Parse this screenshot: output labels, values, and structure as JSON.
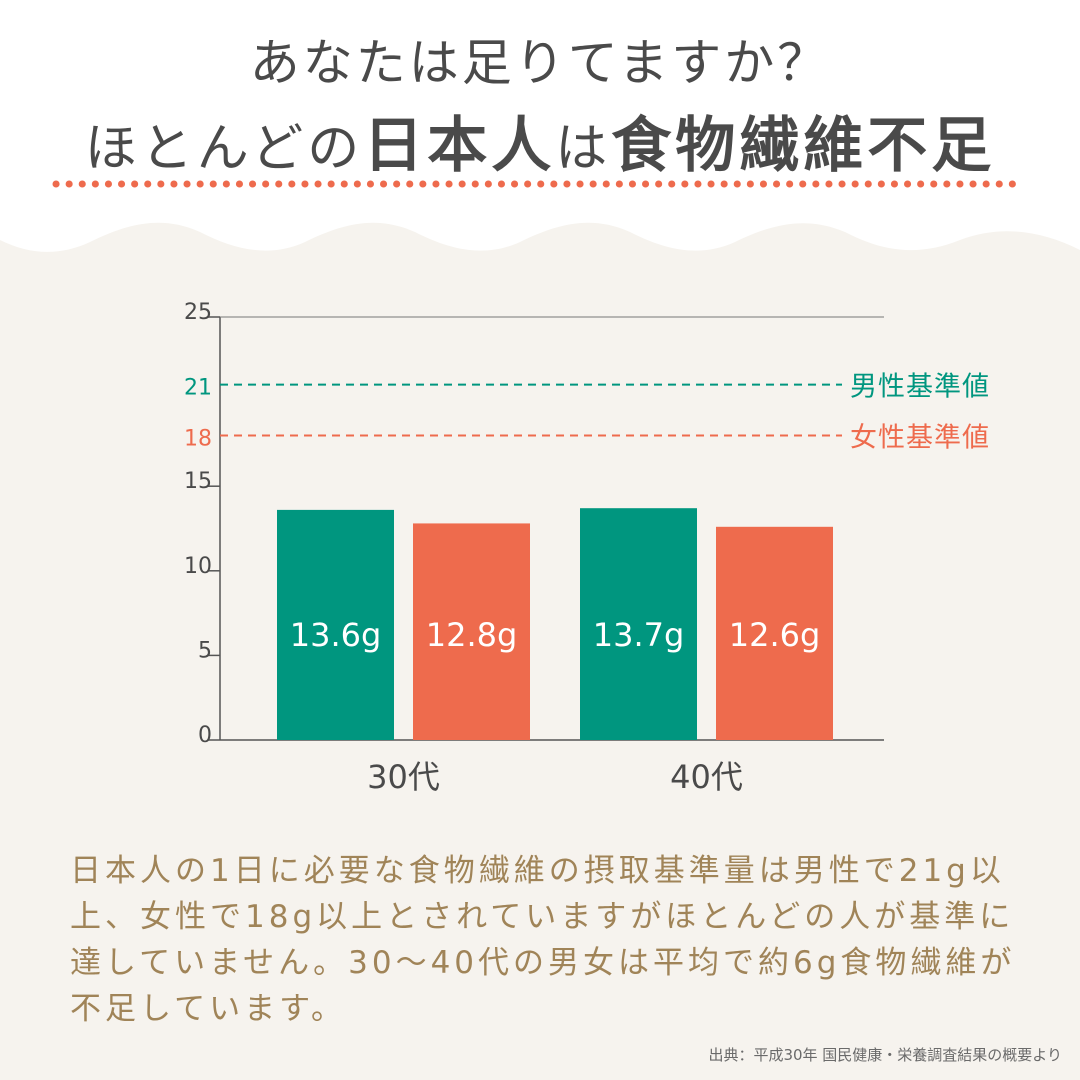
{
  "header": {
    "line1": "あなたは足りてますか？",
    "line2_parts": [
      "ほとんどの",
      "日本人",
      "は",
      "食物繊維不足"
    ]
  },
  "colors": {
    "male": "#00967f",
    "female": "#ee6b4d",
    "brown_text": "#a08458",
    "dark_text": "#4a4a4a",
    "divider_dots": "#ee6b4d"
  },
  "chart_data": {
    "type": "bar",
    "categories": [
      "30代",
      "40代"
    ],
    "series": [
      {
        "values": [
          13.6,
          13.7
        ],
        "labels": [
          "13.6g",
          "13.7g"
        ]
      },
      {
        "values": [
          12.8,
          12.6
        ],
        "labels": [
          "12.8g",
          "12.6g"
        ]
      }
    ],
    "ylim": [
      0,
      25
    ],
    "yticks": [
      0,
      5,
      10,
      15,
      25
    ],
    "reference_lines": [
      {
        "value": 21,
        "tick_label": "21",
        "label": "男性基準値"
      },
      {
        "value": 18,
        "tick_label": "18",
        "label": "女性基準値"
      }
    ]
  },
  "body_text": "日本人の1日に必要な食物繊維の摂取基準量は男性で21g以上、女性で18g以上とされていますがほとんどの人が基準に達していません。30〜40代の男女は平均で約6g食物繊維が不足しています。",
  "source": "出典：平成30年 国民健康・栄養調査結果の概要より"
}
